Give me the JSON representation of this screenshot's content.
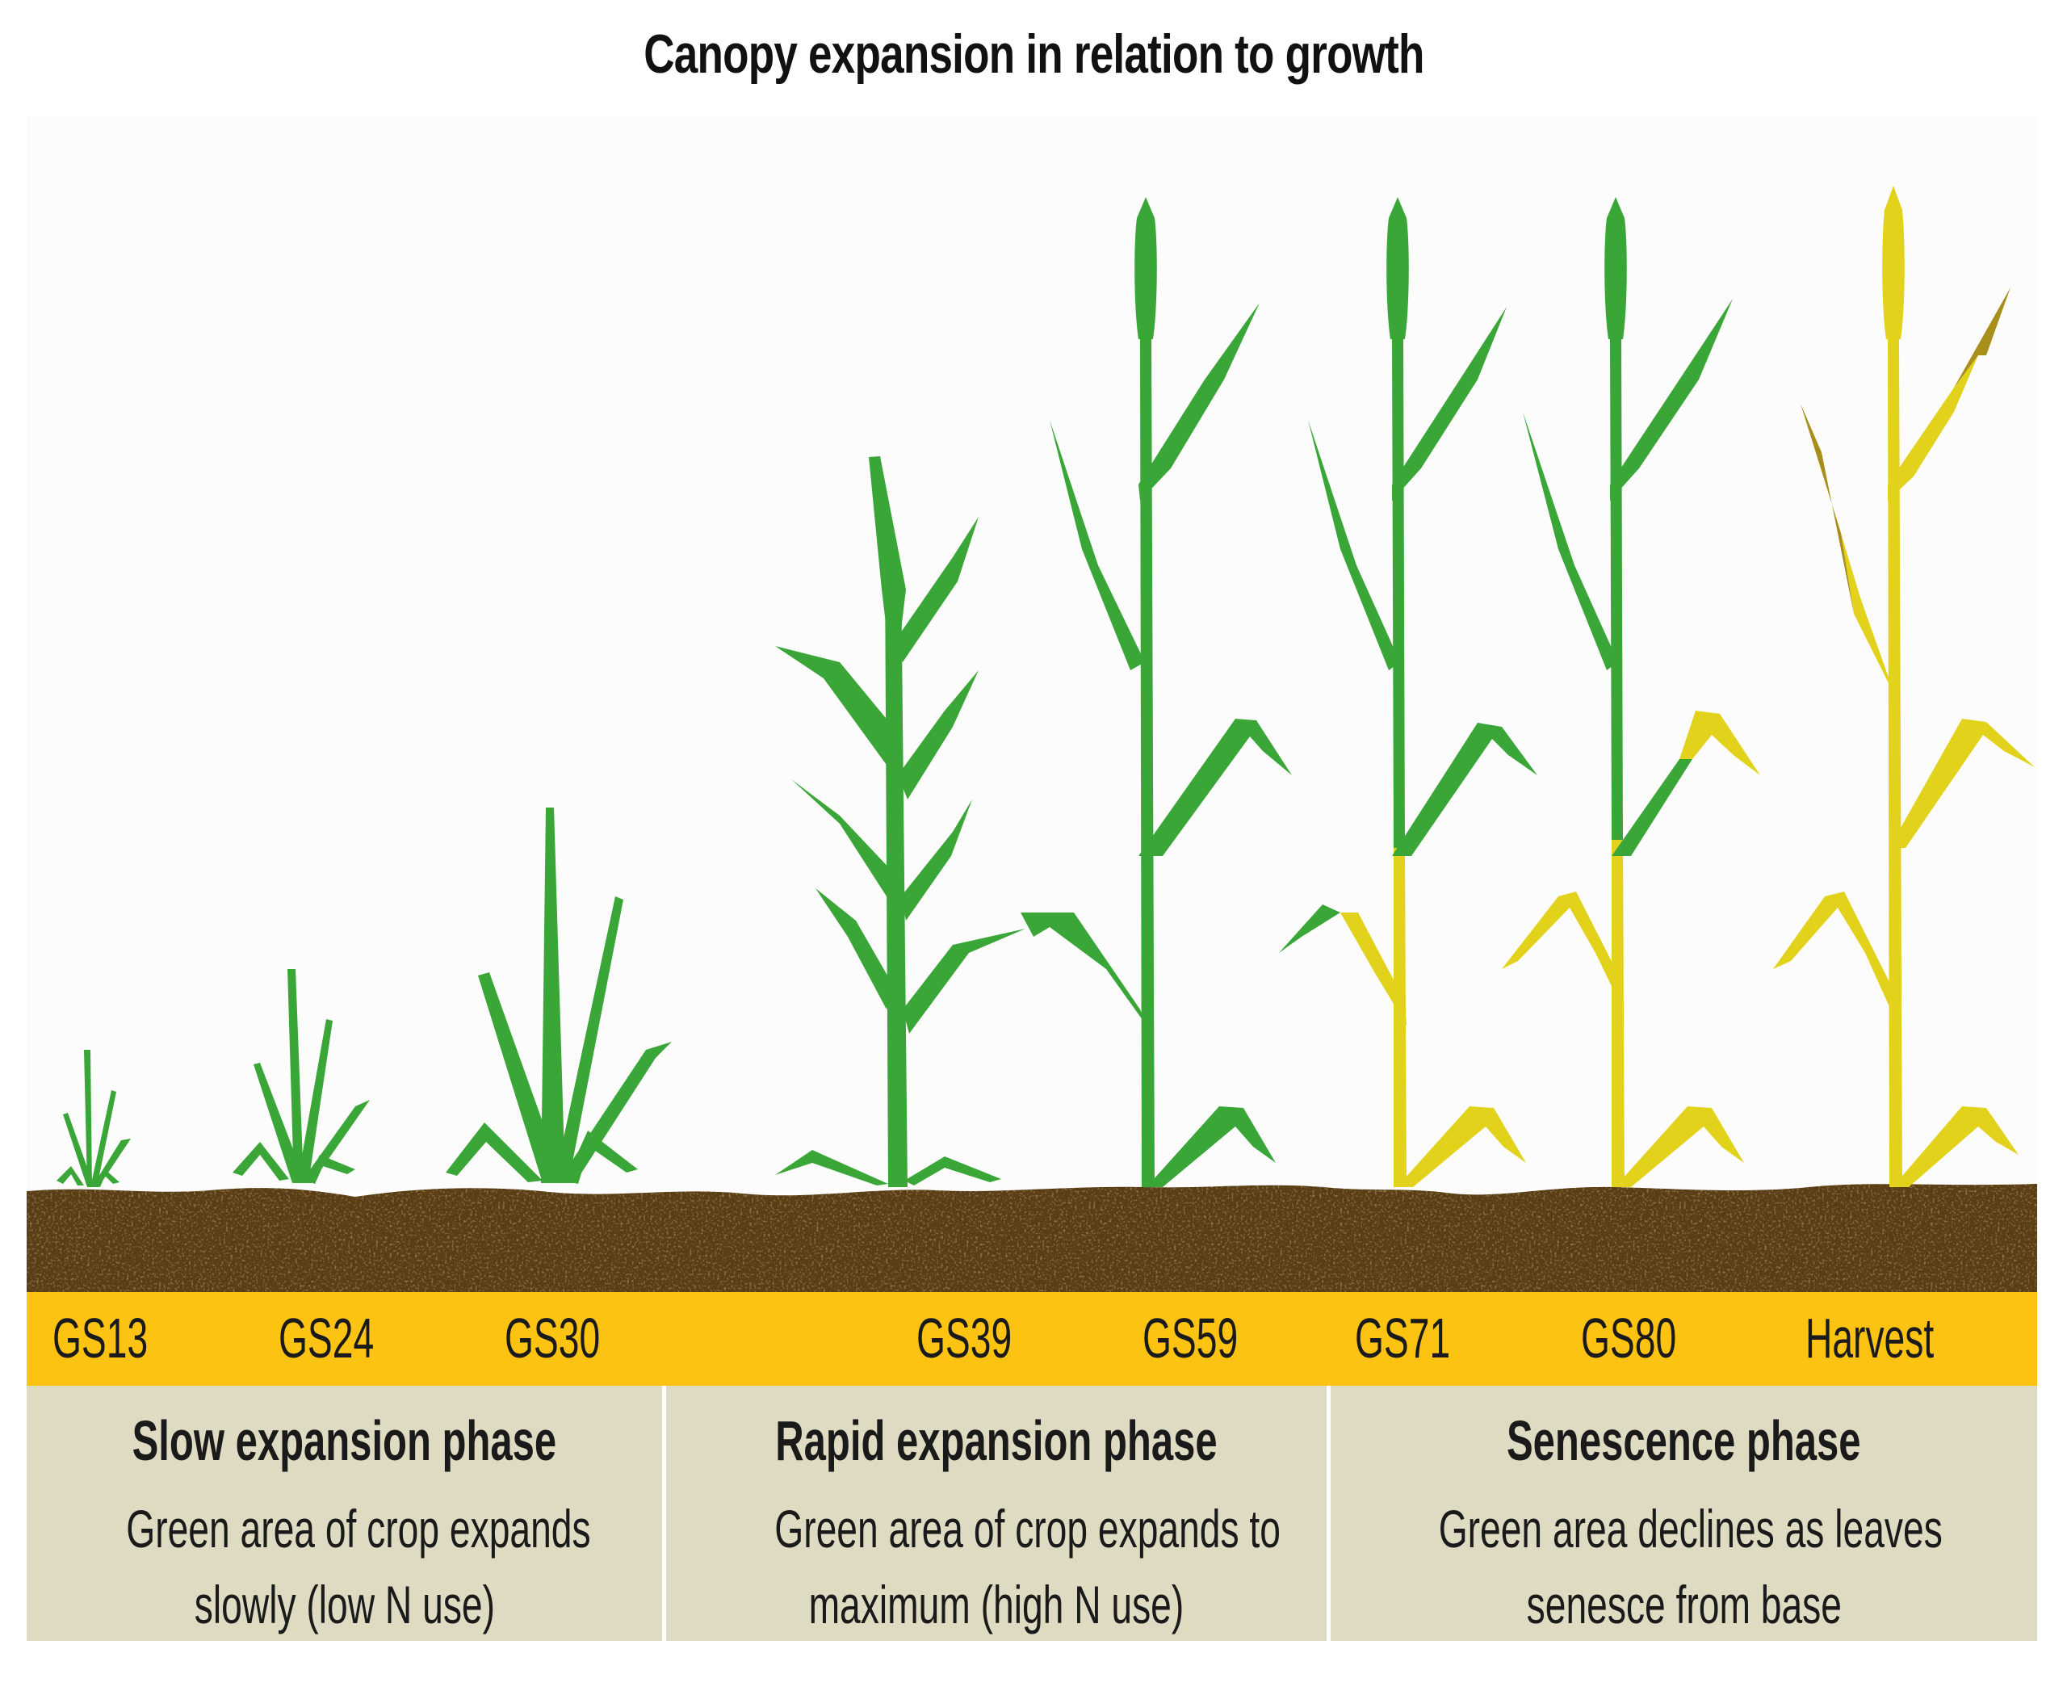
{
  "title": "Canopy expansion in relation to growth",
  "colors": {
    "green": "#3aa637",
    "yellow": "#e3d21c",
    "brown_tip": "#a88e1a",
    "soil": "#5a3c12",
    "band": "#fcc313",
    "phase_bg": "#dedbc2"
  },
  "stages": [
    {
      "label": "GS13",
      "state": "seedling"
    },
    {
      "label": "GS24",
      "state": "tillering"
    },
    {
      "label": "GS30",
      "state": "stem-elongation"
    },
    {
      "label": "GS39",
      "state": "flag-leaf"
    },
    {
      "label": "GS59",
      "state": "ear-emerged"
    },
    {
      "label": "GS71",
      "state": "grain-fill-lower-leaf-senescing"
    },
    {
      "label": "GS80",
      "state": "dough-lower-leaves-senesced"
    },
    {
      "label": "Harvest",
      "state": "ripe"
    }
  ],
  "phases": [
    {
      "title": "Slow expansion phase",
      "desc_line1": "Green area of crop expands",
      "desc_line2": "slowly (low N use)"
    },
    {
      "title": "Rapid expansion phase",
      "desc_line1": "Green area of crop expands to",
      "desc_line2": "maximum (high N use)"
    },
    {
      "title": "Senescence phase",
      "desc_line1": "Green area declines as leaves",
      "desc_line2": "senesce from base"
    }
  ]
}
